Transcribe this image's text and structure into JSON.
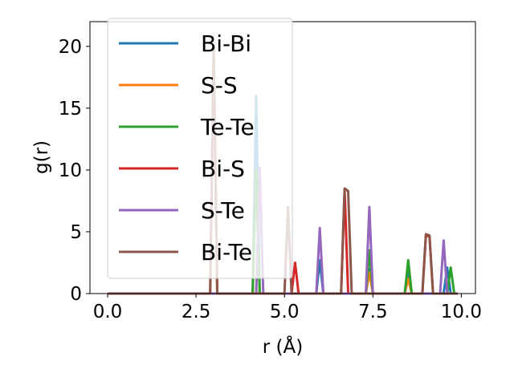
{
  "chart_data": {
    "type": "line",
    "title": "",
    "xlabel": "r (Å)",
    "ylabel": "g(r)",
    "xlim": [
      -0.5,
      10.4
    ],
    "ylim": [
      0,
      22
    ],
    "x_ticks": [
      0.0,
      2.5,
      5.0,
      7.5,
      10.0
    ],
    "x_tick_labels": [
      "0.0",
      "2.5",
      "5.0",
      "7.5",
      "10.0"
    ],
    "y_ticks": [
      0,
      5,
      10,
      15,
      20
    ],
    "y_tick_labels": [
      "0",
      "5",
      "10",
      "15",
      "20"
    ],
    "grid": false,
    "legend_position": "upper-left",
    "series": [
      {
        "name": "Bi-Bi",
        "color": "#1f77b4",
        "points": [
          [
            0,
            0
          ],
          [
            4.1,
            0
          ],
          [
            4.2,
            16.0
          ],
          [
            4.3,
            0
          ],
          [
            5.9,
            0
          ],
          [
            6.0,
            2.7
          ],
          [
            6.1,
            0
          ],
          [
            7.3,
            0
          ],
          [
            7.4,
            2.0
          ],
          [
            7.5,
            0
          ],
          [
            8.4,
            0
          ],
          [
            8.5,
            1.6
          ],
          [
            8.6,
            0
          ],
          [
            9.5,
            0
          ],
          [
            9.6,
            2.1
          ],
          [
            9.7,
            0
          ],
          [
            9.9,
            0
          ]
        ]
      },
      {
        "name": "S-S",
        "color": "#ff7f0e",
        "points": [
          [
            0,
            0
          ],
          [
            4.1,
            0
          ],
          [
            4.2,
            10.0
          ],
          [
            4.3,
            0
          ],
          [
            7.3,
            0
          ],
          [
            7.4,
            1.7
          ],
          [
            7.5,
            0
          ],
          [
            8.4,
            0
          ],
          [
            8.5,
            1.2
          ],
          [
            8.6,
            0
          ],
          [
            9.9,
            0
          ]
        ]
      },
      {
        "name": "Te-Te",
        "color": "#2ca02c",
        "points": [
          [
            0,
            0
          ],
          [
            4.1,
            0
          ],
          [
            4.2,
            10.0
          ],
          [
            4.3,
            0
          ],
          [
            7.3,
            0
          ],
          [
            7.4,
            3.5
          ],
          [
            7.5,
            0
          ],
          [
            8.4,
            0
          ],
          [
            8.5,
            2.7
          ],
          [
            8.6,
            0
          ],
          [
            9.6,
            0
          ],
          [
            9.7,
            2.1
          ],
          [
            9.8,
            0
          ],
          [
            9.9,
            0
          ]
        ]
      },
      {
        "name": "Bi-S",
        "color": "#d62728",
        "points": [
          [
            0,
            0
          ],
          [
            2.9,
            0
          ],
          [
            3.0,
            20.0
          ],
          [
            3.1,
            0
          ],
          [
            5.2,
            0
          ],
          [
            5.3,
            2.5
          ],
          [
            5.4,
            0
          ],
          [
            6.6,
            0
          ],
          [
            6.7,
            8.4
          ],
          [
            6.8,
            0
          ],
          [
            8.9,
            0
          ],
          [
            9.0,
            4.7
          ],
          [
            9.1,
            4.6
          ],
          [
            9.2,
            0
          ],
          [
            9.9,
            0
          ]
        ]
      },
      {
        "name": "S-Te",
        "color": "#9467bd",
        "points": [
          [
            0,
            0
          ],
          [
            4.2,
            0
          ],
          [
            4.3,
            10.2
          ],
          [
            4.4,
            0
          ],
          [
            5.9,
            0
          ],
          [
            6.0,
            5.3
          ],
          [
            6.1,
            0
          ],
          [
            7.3,
            0
          ],
          [
            7.4,
            7.0
          ],
          [
            7.5,
            0
          ],
          [
            9.4,
            0
          ],
          [
            9.5,
            4.3
          ],
          [
            9.6,
            0
          ],
          [
            9.9,
            0
          ]
        ]
      },
      {
        "name": "Bi-Te",
        "color": "#8c564b",
        "points": [
          [
            0,
            0
          ],
          [
            2.9,
            0
          ],
          [
            3.0,
            20.0
          ],
          [
            3.1,
            0
          ],
          [
            5.0,
            0
          ],
          [
            5.1,
            7.0
          ],
          [
            5.2,
            0
          ],
          [
            6.6,
            0
          ],
          [
            6.7,
            8.5
          ],
          [
            6.8,
            8.3
          ],
          [
            6.9,
            0
          ],
          [
            8.9,
            0
          ],
          [
            9.0,
            4.8
          ],
          [
            9.1,
            4.7
          ],
          [
            9.2,
            0
          ],
          [
            9.9,
            0
          ]
        ]
      }
    ]
  }
}
